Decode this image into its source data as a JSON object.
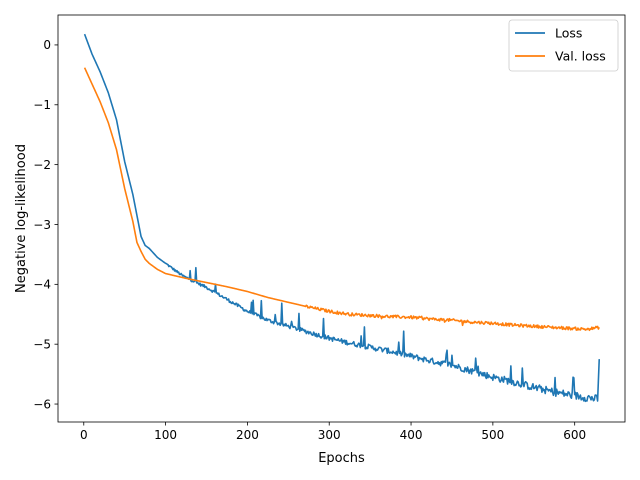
{
  "chart_data": {
    "type": "line",
    "xlabel": "Epochs",
    "ylabel": "Negative log-likelihood",
    "xlim": [
      -31.5,
      661.5
    ],
    "ylim": [
      -6.3,
      0.5
    ],
    "xticks": [
      0,
      100,
      200,
      300,
      400,
      500,
      600
    ],
    "xtick_labels": [
      "0",
      "100",
      "200",
      "300",
      "400",
      "500",
      "600"
    ],
    "yticks": [
      0,
      -1,
      -2,
      -3,
      -4,
      -5,
      -6
    ],
    "ytick_labels": [
      "0",
      "−1",
      "−2",
      "−3",
      "−4",
      "−5",
      "−6"
    ],
    "grid": false,
    "legend_position": "top-right",
    "series": [
      {
        "name": "Loss",
        "color": "#1f77b4",
        "noisy": true,
        "points": [
          [
            1,
            0.18
          ],
          [
            10,
            -0.15
          ],
          [
            20,
            -0.45
          ],
          [
            30,
            -0.8
          ],
          [
            40,
            -1.25
          ],
          [
            50,
            -1.95
          ],
          [
            60,
            -2.5
          ],
          [
            70,
            -3.2
          ],
          [
            75,
            -3.35
          ],
          [
            80,
            -3.4
          ],
          [
            90,
            -3.55
          ],
          [
            100,
            -3.65
          ],
          [
            110,
            -3.75
          ],
          [
            120,
            -3.85
          ],
          [
            130,
            -3.92
          ],
          [
            150,
            -4.05
          ],
          [
            175,
            -4.25
          ],
          [
            200,
            -4.45
          ],
          [
            225,
            -4.6
          ],
          [
            250,
            -4.7
          ],
          [
            275,
            -4.8
          ],
          [
            300,
            -4.9
          ],
          [
            325,
            -4.98
          ],
          [
            350,
            -5.05
          ],
          [
            375,
            -5.12
          ],
          [
            400,
            -5.2
          ],
          [
            425,
            -5.28
          ],
          [
            450,
            -5.35
          ],
          [
            475,
            -5.45
          ],
          [
            500,
            -5.55
          ],
          [
            525,
            -5.63
          ],
          [
            550,
            -5.72
          ],
          [
            575,
            -5.8
          ],
          [
            600,
            -5.86
          ],
          [
            620,
            -5.9
          ],
          [
            628,
            -5.92
          ],
          [
            630,
            -5.25
          ]
        ]
      },
      {
        "name": "Val. loss",
        "color": "#ff7f0e",
        "noisy": false,
        "points": [
          [
            1,
            -0.38
          ],
          [
            10,
            -0.65
          ],
          [
            20,
            -0.95
          ],
          [
            30,
            -1.3
          ],
          [
            40,
            -1.75
          ],
          [
            50,
            -2.4
          ],
          [
            60,
            -2.95
          ],
          [
            65,
            -3.3
          ],
          [
            70,
            -3.45
          ],
          [
            75,
            -3.58
          ],
          [
            80,
            -3.65
          ],
          [
            90,
            -3.75
          ],
          [
            100,
            -3.82
          ],
          [
            125,
            -3.9
          ],
          [
            150,
            -3.97
          ],
          [
            175,
            -4.04
          ],
          [
            200,
            -4.12
          ],
          [
            225,
            -4.22
          ],
          [
            250,
            -4.3
          ],
          [
            275,
            -4.38
          ],
          [
            300,
            -4.45
          ],
          [
            325,
            -4.5
          ],
          [
            350,
            -4.52
          ],
          [
            375,
            -4.54
          ],
          [
            400,
            -4.55
          ],
          [
            425,
            -4.58
          ],
          [
            450,
            -4.6
          ],
          [
            475,
            -4.63
          ],
          [
            500,
            -4.65
          ],
          [
            525,
            -4.68
          ],
          [
            550,
            -4.7
          ],
          [
            575,
            -4.72
          ],
          [
            600,
            -4.74
          ],
          [
            615,
            -4.75
          ],
          [
            630,
            -4.72
          ]
        ]
      }
    ]
  }
}
